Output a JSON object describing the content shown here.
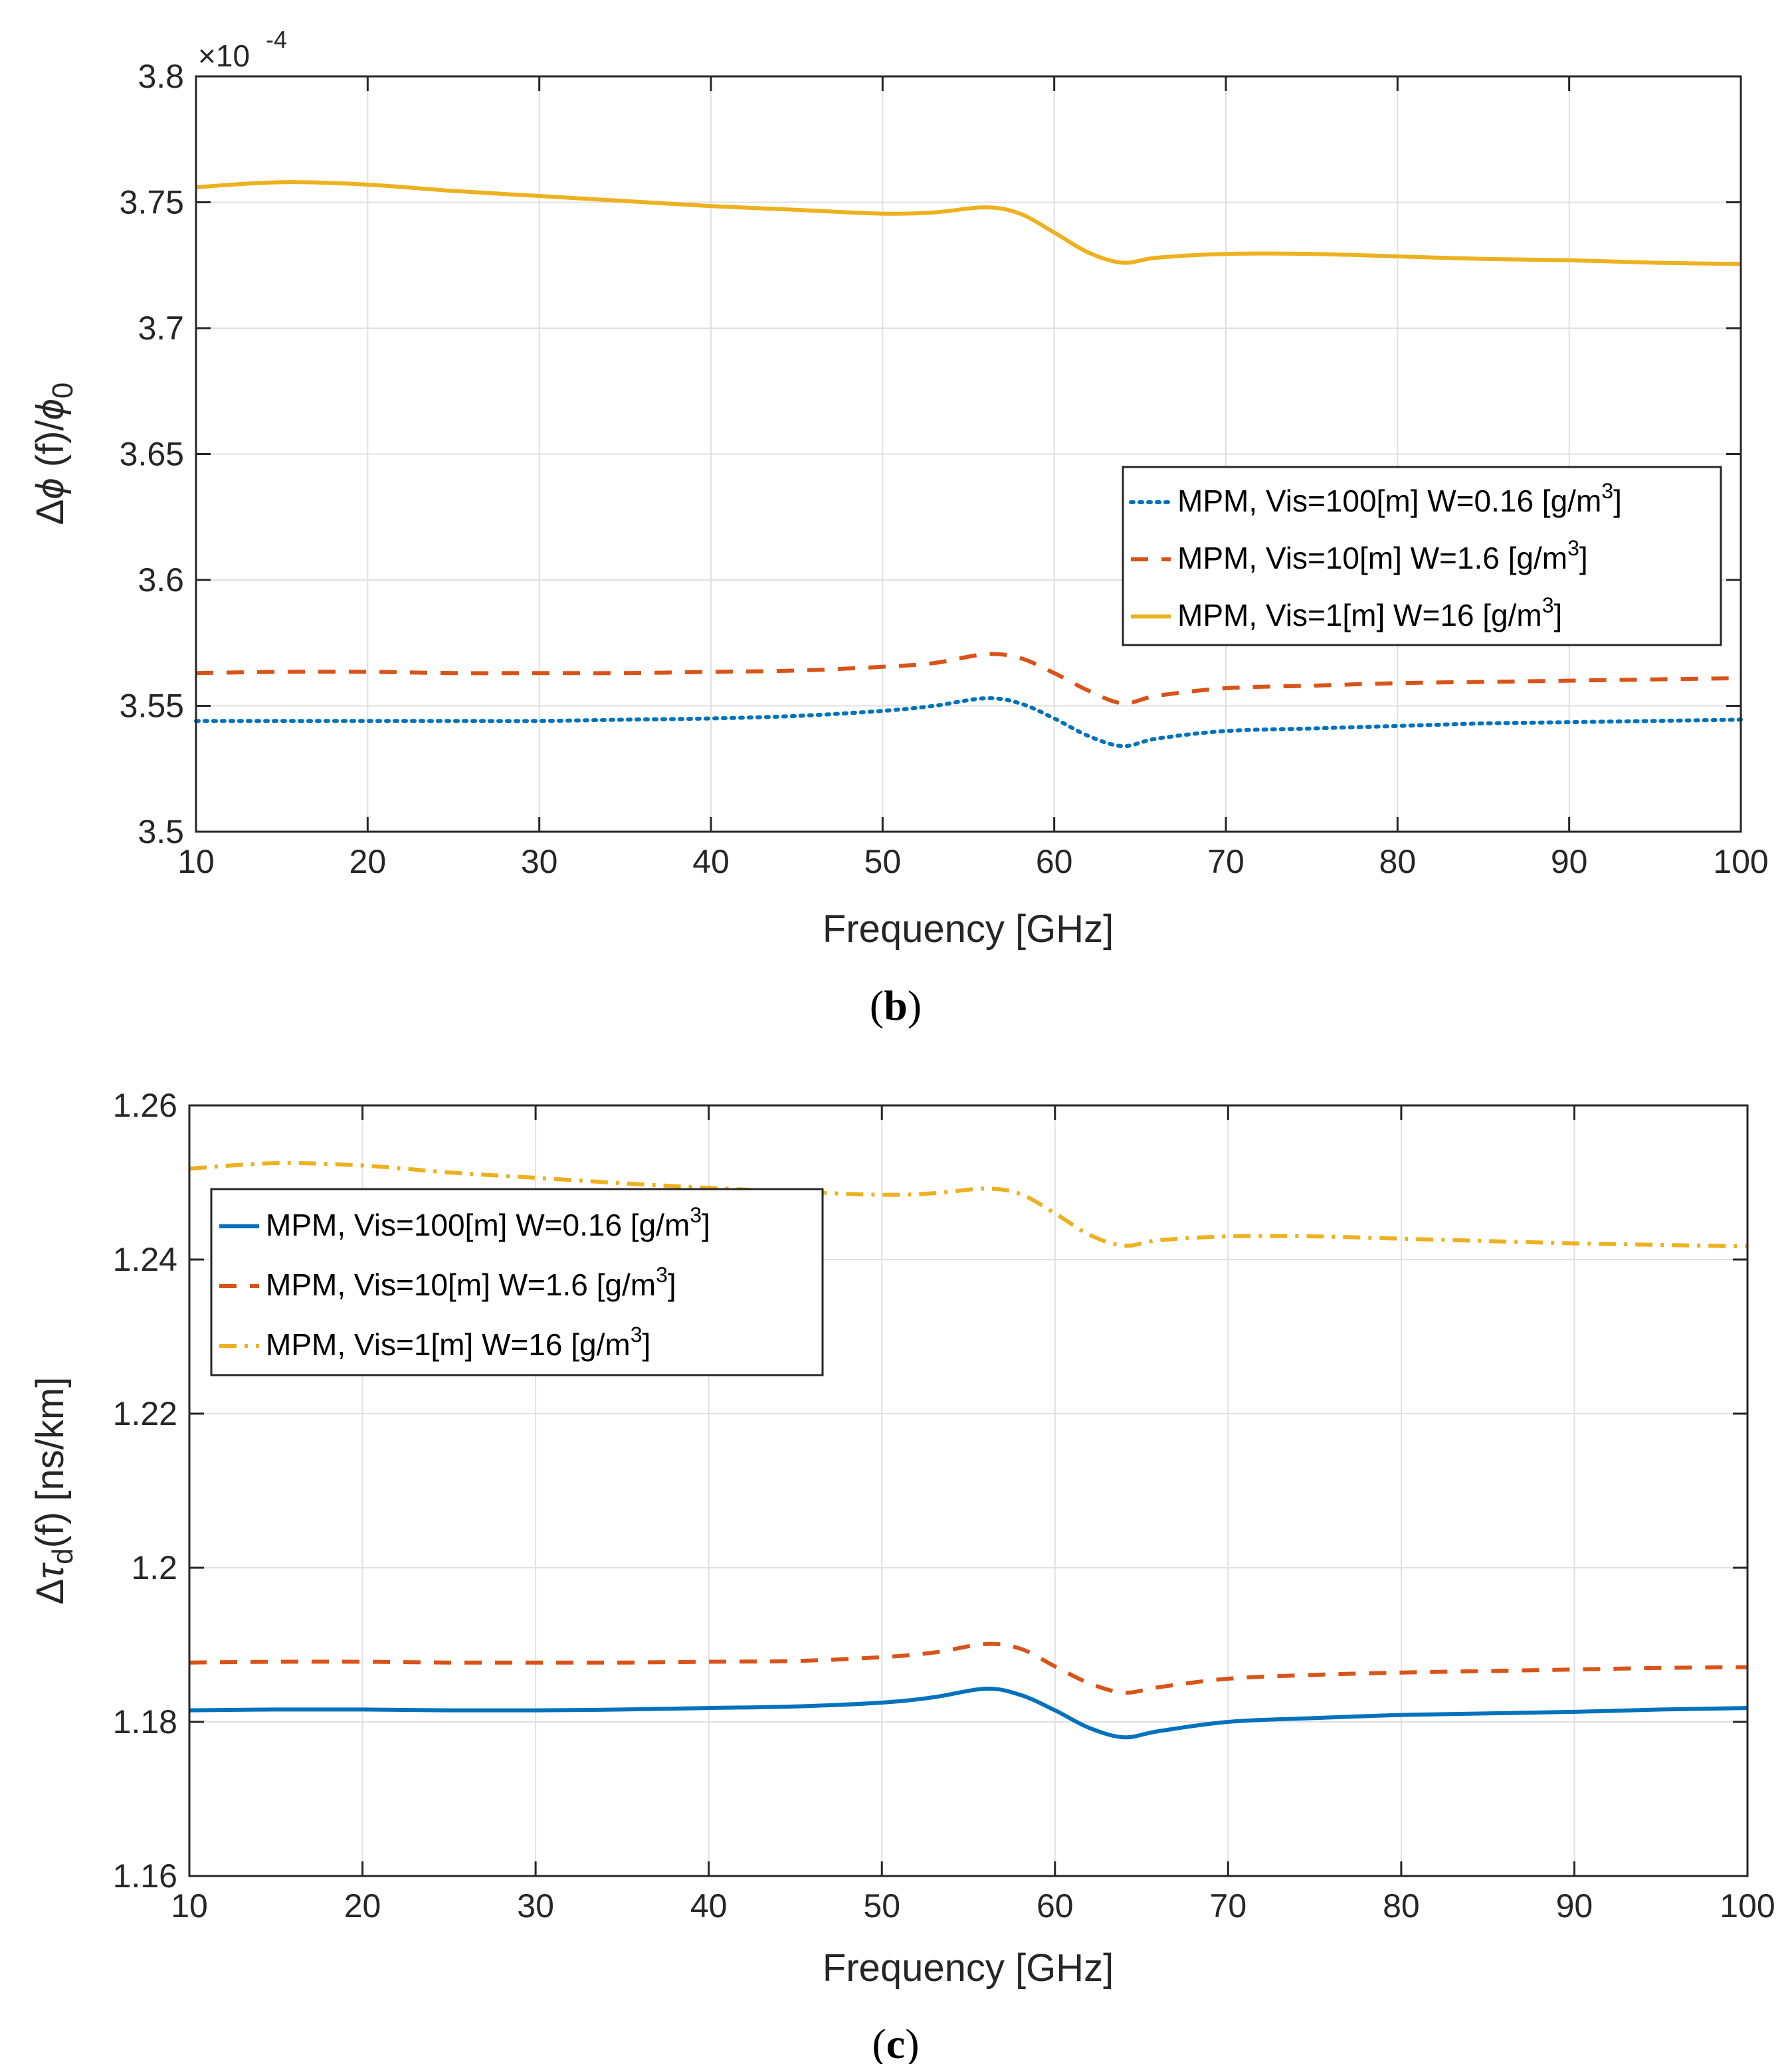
{
  "panels": [
    {
      "id": "b",
      "caption": "b",
      "chart_data": {
        "type": "line",
        "title": "",
        "xlabel": "Frequency [GHz]",
        "ylabel_parts": [
          "Δ",
          "ϕ",
          " (f)/",
          "ϕ",
          "0"
        ],
        "exponent_label": "×10",
        "exponent_power": "-4",
        "xlim": [
          10,
          100
        ],
        "ylim": [
          3.5,
          3.8
        ],
        "xticks": [
          10,
          20,
          30,
          40,
          50,
          60,
          70,
          80,
          90,
          100
        ],
        "xtick_labels": [
          "10",
          "20",
          "30",
          "40",
          "50",
          "60",
          "70",
          "80",
          "90",
          "100"
        ],
        "yticks": [
          3.5,
          3.55,
          3.6,
          3.65,
          3.7,
          3.75,
          3.8
        ],
        "ytick_labels": [
          "3.5",
          "3.55",
          "3.6",
          "3.65",
          "3.7",
          "3.75",
          "3.8"
        ],
        "grid": true,
        "legend_position": "center-right",
        "x": [
          10,
          15,
          20,
          25,
          30,
          35,
          40,
          45,
          50,
          53,
          56,
          58,
          60,
          62,
          64,
          66,
          70,
          75,
          80,
          85,
          90,
          95,
          100
        ],
        "series": [
          {
            "name": "MPM, Vis=100[m] W=0.16 [g/m",
            "sup": "3",
            "name_end": "]",
            "color": "#0072bd",
            "dash": "dotted",
            "values": [
              3.544,
              3.544,
              3.544,
              3.544,
              3.544,
              3.5445,
              3.545,
              3.546,
              3.548,
              3.55,
              3.553,
              3.551,
              3.545,
              3.538,
              3.534,
              3.537,
              3.54,
              3.541,
              3.542,
              3.543,
              3.5435,
              3.544,
              3.5445
            ]
          },
          {
            "name": "MPM, Vis=10[m] W=1.6 [g/m",
            "sup": "3",
            "name_end": "]",
            "color": "#d95319",
            "dash": "dashed",
            "values": [
              3.563,
              3.5635,
              3.5635,
              3.563,
              3.563,
              3.563,
              3.5635,
              3.564,
              3.5655,
              3.567,
              3.5705,
              3.569,
              3.563,
              3.556,
              3.551,
              3.554,
              3.557,
              3.558,
              3.559,
              3.5595,
              3.56,
              3.5605,
              3.561
            ]
          },
          {
            "name": "MPM, Vis=1[m]  W=16 [g/m",
            "sup": "3",
            "name_end": "]",
            "color": "#edb120",
            "dash": "solid",
            "values": [
              3.756,
              3.758,
              3.757,
              3.7545,
              3.7525,
              3.7505,
              3.7485,
              3.747,
              3.7455,
              3.746,
              3.748,
              3.7455,
              3.738,
              3.73,
              3.726,
              3.728,
              3.7295,
              3.7295,
              3.7285,
              3.7275,
              3.727,
              3.726,
              3.7255
            ]
          }
        ]
      }
    },
    {
      "id": "c",
      "caption": "c",
      "chart_data": {
        "type": "line",
        "title": "",
        "xlabel": "Frequency [GHz]",
        "ylabel_parts": [
          "Δ",
          "τ",
          "d",
          "(f) [ns/km]"
        ],
        "xlim": [
          10,
          100
        ],
        "ylim": [
          1.16,
          1.26
        ],
        "xticks": [
          10,
          20,
          30,
          40,
          50,
          60,
          70,
          80,
          90,
          100
        ],
        "xtick_labels": [
          "10",
          "20",
          "30",
          "40",
          "50",
          "60",
          "70",
          "80",
          "90",
          "100"
        ],
        "yticks": [
          1.16,
          1.18,
          1.2,
          1.22,
          1.24,
          1.26
        ],
        "ytick_labels": [
          "1.16",
          "1.18",
          "1.2",
          "1.22",
          "1.24",
          "1.26"
        ],
        "grid": true,
        "legend_position": "top-left",
        "x": [
          10,
          15,
          20,
          25,
          30,
          35,
          40,
          45,
          50,
          53,
          56,
          58,
          60,
          62,
          64,
          66,
          70,
          75,
          80,
          85,
          90,
          95,
          100
        ],
        "series": [
          {
            "name": "MPM, Vis=100[m] W=0.16 [g/m",
            "sup": "3",
            "name_end": "]",
            "color": "#0072bd",
            "dash": "solid",
            "values": [
              1.1815,
              1.1816,
              1.1816,
              1.1815,
              1.1815,
              1.1816,
              1.1818,
              1.182,
              1.1825,
              1.1832,
              1.1843,
              1.1835,
              1.1815,
              1.1792,
              1.178,
              1.1788,
              1.18,
              1.1805,
              1.1809,
              1.1811,
              1.1813,
              1.1816,
              1.1818
            ]
          },
          {
            "name": "MPM, Vis=10[m] W=1.6 [g/m",
            "sup": "3",
            "name_end": "]",
            "color": "#d95319",
            "dash": "dashed",
            "values": [
              1.1877,
              1.1878,
              1.1878,
              1.1877,
              1.1877,
              1.1877,
              1.1878,
              1.1879,
              1.1884,
              1.189,
              1.1901,
              1.1895,
              1.1872,
              1.185,
              1.1838,
              1.1845,
              1.1856,
              1.1861,
              1.1864,
              1.1866,
              1.1868,
              1.187,
              1.1871
            ]
          },
          {
            "name": "MPM, Vis=1[m]  W=16 [g/m",
            "sup": "3",
            "name_end": "]",
            "color": "#edb120",
            "dash": "dashdot",
            "values": [
              1.2518,
              1.2525,
              1.2522,
              1.2513,
              1.2506,
              1.2499,
              1.2493,
              1.2488,
              1.2484,
              1.2486,
              1.2492,
              1.2485,
              1.246,
              1.2432,
              1.2418,
              1.2425,
              1.243,
              1.243,
              1.2427,
              1.2424,
              1.2421,
              1.2419,
              1.2417
            ]
          }
        ]
      }
    }
  ]
}
